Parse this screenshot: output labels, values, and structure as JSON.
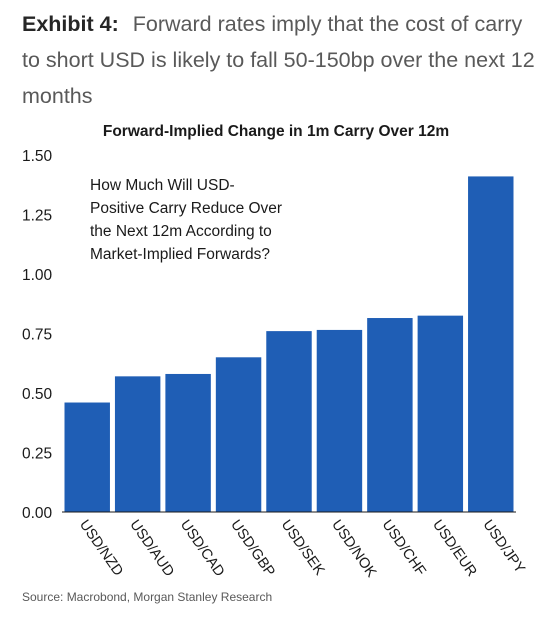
{
  "exhibit": {
    "label": "Exhibit 4:",
    "headline": "Forward rates imply that the cost of carry to short USD is likely to fall 50-150bp over the next 12 months"
  },
  "chart_data": {
    "type": "bar",
    "title": "Forward-Implied Change in 1m Carry Over 12m",
    "annotation": [
      "How Much Will USD-",
      "Positive Carry Reduce Over",
      "the Next 12m According to",
      "Market-Implied Forwards?"
    ],
    "categories": [
      "USD/NZD",
      "USD/AUD",
      "USD/CAD",
      "USD/GBP",
      "USD/SEK",
      "USD/NOK",
      "USD/CHF",
      "USD/EUR",
      "USD/JPY"
    ],
    "values": [
      0.46,
      0.57,
      0.58,
      0.65,
      0.76,
      0.765,
      0.815,
      0.825,
      1.41
    ],
    "yticks": [
      "0.00",
      "0.25",
      "0.50",
      "0.75",
      "1.00",
      "1.25",
      "1.50"
    ],
    "ylim": [
      0,
      1.5
    ],
    "xlabel": "",
    "ylabel": "",
    "grid": false,
    "bar_color": "#1f5eb5"
  },
  "source": "Source: Macrobond, Morgan Stanley Research"
}
